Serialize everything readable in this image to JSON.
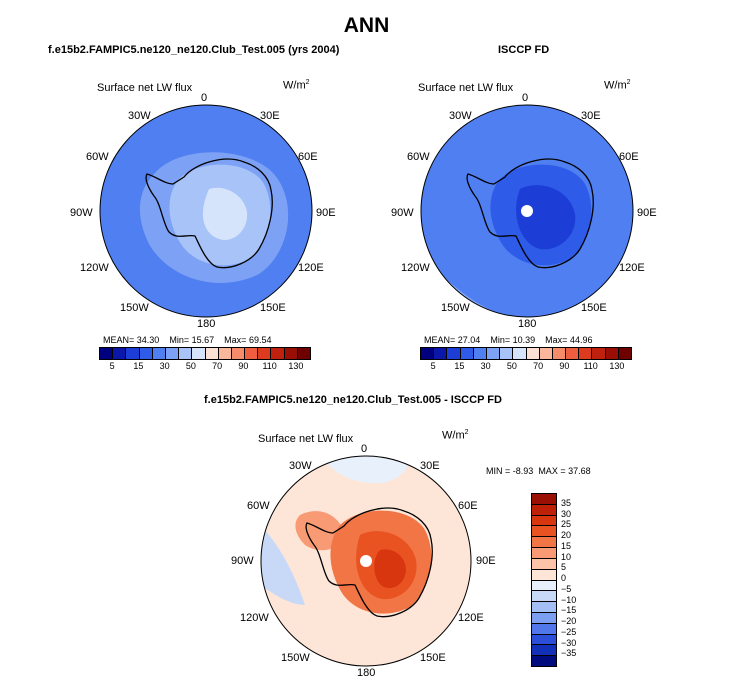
{
  "title": "ANN",
  "chart_data": [
    {
      "type": "heatmap",
      "projection": "south polar stereographic",
      "title": "f.e15b2.FAMPIC5.ne120_ne120.Club_Test.005 (yrs 2004)",
      "variable": "Surface net LW flux",
      "units": "W/m",
      "units_exp": "2",
      "lon_labels": [
        "0",
        "30E",
        "60E",
        "90E",
        "120E",
        "150E",
        "180",
        "150W",
        "120W",
        "90W",
        "60W",
        "30W"
      ],
      "stats": {
        "mean_label": "MEAN=",
        "mean": "34.30",
        "min_label": "Min=",
        "min": "15.67",
        "max_label": "Max=",
        "max": "69.54"
      },
      "colorbar": {
        "levels": [
          0,
          5,
          10,
          15,
          20,
          30,
          40,
          50,
          60,
          70,
          80,
          90,
          100,
          110,
          120,
          130
        ],
        "tick_labels": [
          "5",
          "15",
          "30",
          "50",
          "70",
          "90",
          "110",
          "130"
        ],
        "colors": [
          "#00007f",
          "#0b17a8",
          "#1d3ed6",
          "#2e5be8",
          "#4f7ff0",
          "#7da2f5",
          "#a8c3f8",
          "#d5e3fb",
          "#fde0d4",
          "#fbb79c",
          "#f78c6b",
          "#ef5f3f",
          "#dd3b1f",
          "#c0210f",
          "#9a0e06",
          "#6e0000"
        ]
      },
      "description_values": {
        "ocean_typical": 30,
        "antarctica_interior": 50
      }
    },
    {
      "type": "heatmap",
      "projection": "south polar stereographic",
      "title": "ISCCP FD",
      "variable": "Surface net LW flux",
      "units": "W/m",
      "units_exp": "2",
      "lon_labels": [
        "0",
        "30E",
        "60E",
        "90E",
        "120E",
        "150E",
        "180",
        "150W",
        "120W",
        "90W",
        "60W",
        "30W"
      ],
      "stats": {
        "mean_label": "MEAN=",
        "mean": "27.04",
        "min_label": "Min=",
        "min": "10.39",
        "max_label": "Max=",
        "max": "44.96"
      },
      "colorbar": {
        "levels": [
          0,
          5,
          10,
          15,
          20,
          30,
          40,
          50,
          60,
          70,
          80,
          90,
          100,
          110,
          120,
          130
        ],
        "tick_labels": [
          "5",
          "15",
          "30",
          "50",
          "70",
          "90",
          "110",
          "130"
        ],
        "colors": [
          "#00007f",
          "#0b17a8",
          "#1d3ed6",
          "#2e5be8",
          "#4f7ff0",
          "#7da2f5",
          "#a8c3f8",
          "#d5e3fb",
          "#fde0d4",
          "#fbb79c",
          "#f78c6b",
          "#ef5f3f",
          "#dd3b1f",
          "#c0210f",
          "#9a0e06",
          "#6e0000"
        ]
      },
      "description_values": {
        "ocean_typical": 30,
        "antarctica_interior": 15
      }
    },
    {
      "type": "heatmap",
      "projection": "south polar stereographic",
      "title": "f.e15b2.FAMPIC5.ne120_ne120.Club_Test.005 - ISCCP FD",
      "variable": "Surface net LW flux",
      "units": "W/m",
      "units_exp": "2",
      "lon_labels": [
        "0",
        "30E",
        "60E",
        "90E",
        "120E",
        "150E",
        "180",
        "150W",
        "120W",
        "90W",
        "60W",
        "30W"
      ],
      "stats": {
        "min_label": "MIN =",
        "min": "-8.93",
        "max_label": "MAX =",
        "max": "37.68"
      },
      "colorbar": {
        "levels": [
          -35,
          -30,
          -25,
          -20,
          -15,
          -10,
          -5,
          0,
          5,
          10,
          15,
          20,
          25,
          30,
          35
        ],
        "tick_labels": [
          "35",
          "30",
          "25",
          "20",
          "15",
          "10",
          "5",
          "0",
          "−5",
          "−10",
          "−15",
          "−20",
          "−25",
          "−30",
          "−35"
        ],
        "colors": [
          "#9a1004",
          "#be2008",
          "#d8360f",
          "#e95322",
          "#f27546",
          "#f89a74",
          "#fcc3a8",
          "#fde6d8",
          "#e8f0fc",
          "#c8d9f8",
          "#a3bff5",
          "#7d9ff1",
          "#5277eb",
          "#2c4fd9",
          "#1330b8",
          "#000c7e"
        ]
      },
      "description_values": {
        "ocean_typical": 3,
        "antarctica_interior": 25
      }
    }
  ]
}
